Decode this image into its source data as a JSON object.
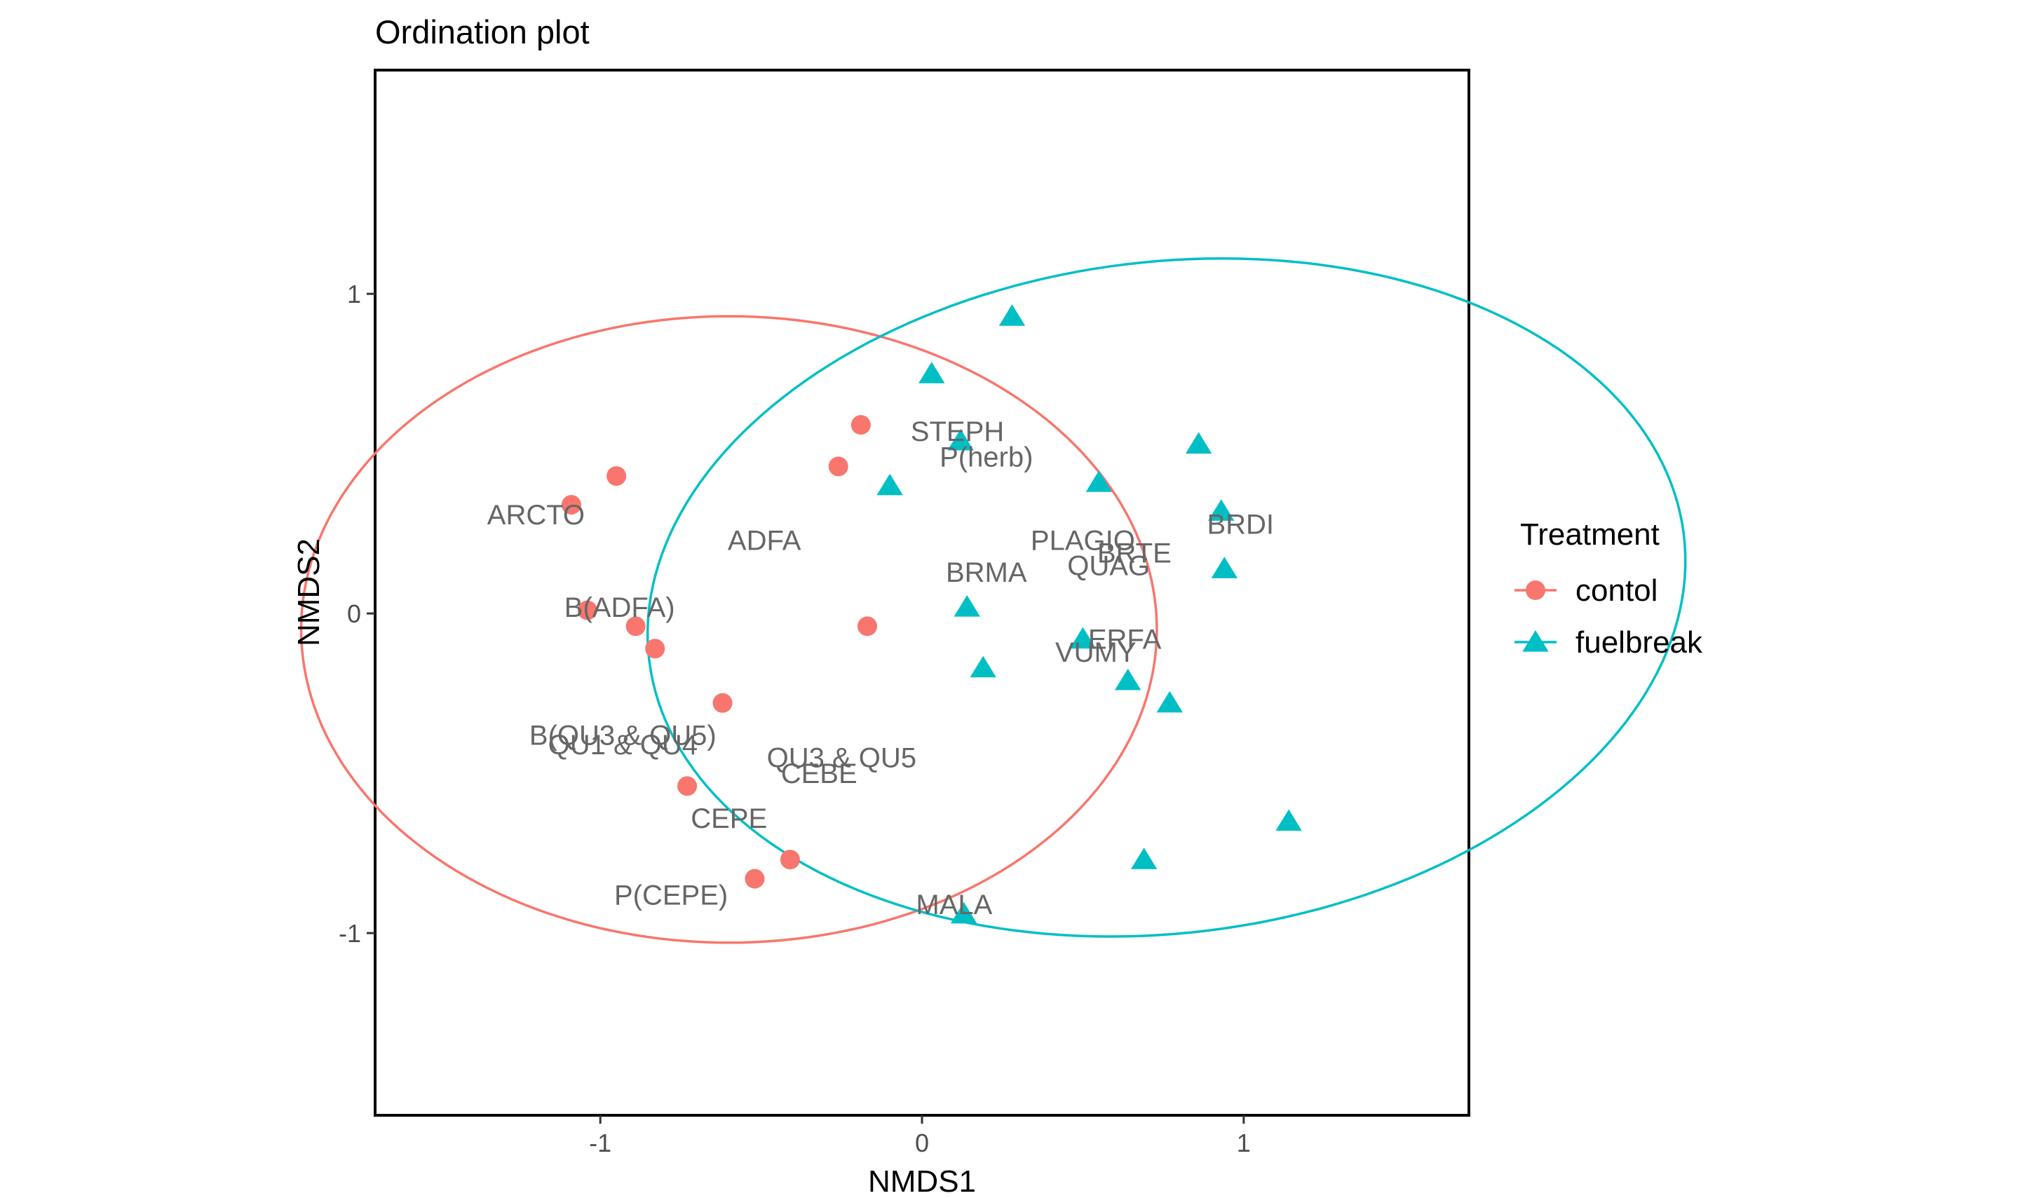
{
  "chart_data": {
    "type": "scatter",
    "title": "Ordination plot",
    "xlabel": "NMDS1",
    "ylabel": "NMDS2",
    "xlim": [
      -1.7,
      1.7
    ],
    "ylim": [
      -1.57,
      1.7
    ],
    "xticks": [
      -1,
      0,
      1
    ],
    "yticks": [
      -1,
      0,
      1
    ],
    "xtick_labels": [
      "-1",
      "0",
      "1"
    ],
    "ytick_labels": [
      "-1",
      "0",
      "1"
    ],
    "grid": false,
    "legend": {
      "title": "Treatment",
      "placement": "right",
      "entries": [
        "contol",
        "fuelbreak"
      ]
    },
    "series": [
      {
        "name": "contol",
        "color": "#F8766D",
        "marker": "circle",
        "points": [
          [
            -1.09,
            0.34
          ],
          [
            -0.95,
            0.43
          ],
          [
            -1.04,
            0.01
          ],
          [
            -0.89,
            -0.04
          ],
          [
            -0.83,
            -0.11
          ],
          [
            -0.62,
            -0.28
          ],
          [
            -0.73,
            -0.54
          ],
          [
            -0.52,
            -0.83
          ],
          [
            -0.41,
            -0.77
          ],
          [
            -0.19,
            0.59
          ],
          [
            -0.26,
            0.46
          ],
          [
            -0.17,
            -0.04
          ]
        ],
        "ellipse": {
          "cx": -0.6,
          "cy": -0.05,
          "rx": 0.98,
          "ry": 1.33,
          "angle_deg": 90
        }
      },
      {
        "name": "fuelbreak",
        "color": "#00BFC4",
        "marker": "triangle",
        "points": [
          [
            0.28,
            0.93
          ],
          [
            0.03,
            0.75
          ],
          [
            0.12,
            0.54
          ],
          [
            -0.1,
            0.4
          ],
          [
            0.55,
            0.41
          ],
          [
            0.86,
            0.53
          ],
          [
            0.93,
            0.32
          ],
          [
            0.94,
            0.14
          ],
          [
            0.14,
            0.02
          ],
          [
            0.19,
            -0.17
          ],
          [
            0.5,
            -0.08
          ],
          [
            0.64,
            -0.21
          ],
          [
            0.77,
            -0.28
          ],
          [
            1.14,
            -0.65
          ],
          [
            0.69,
            -0.77
          ],
          [
            0.13,
            -0.94
          ]
        ],
        "ellipse": {
          "cx": 0.76,
          "cy": 0.05,
          "rx": 1.05,
          "ry": 1.62,
          "angle_deg": 97
        }
      }
    ],
    "labels": [
      {
        "text": "STEPH",
        "x": 0.11,
        "y": 0.57
      },
      {
        "text": "P(herb)",
        "x": 0.2,
        "y": 0.49
      },
      {
        "text": "ARCTO",
        "x": -1.2,
        "y": 0.31
      },
      {
        "text": "ADFA",
        "x": -0.49,
        "y": 0.23
      },
      {
        "text": "PLAGIO",
        "x": 0.5,
        "y": 0.23
      },
      {
        "text": "BRTE",
        "x": 0.66,
        "y": 0.19
      },
      {
        "text": "QUAG",
        "x": 0.58,
        "y": 0.15
      },
      {
        "text": "BRDI",
        "x": 0.99,
        "y": 0.28
      },
      {
        "text": "BRMA",
        "x": 0.2,
        "y": 0.13
      },
      {
        "text": "B(ADFA)",
        "x": -0.94,
        "y": 0.02
      },
      {
        "text": "ERFA",
        "x": 0.63,
        "y": -0.08
      },
      {
        "text": "VUMY",
        "x": 0.54,
        "y": -0.12
      },
      {
        "text": "B(QU3 & QU5)",
        "x": -0.93,
        "y": -0.38
      },
      {
        "text": "QU1 & QU4",
        "x": -0.93,
        "y": -0.41
      },
      {
        "text": "QU3 & QU5",
        "x": -0.25,
        "y": -0.45
      },
      {
        "text": "CEBE",
        "x": -0.32,
        "y": -0.5
      },
      {
        "text": "CEPE",
        "x": -0.6,
        "y": -0.64
      },
      {
        "text": "P(CEPE)",
        "x": -0.78,
        "y": -0.88
      },
      {
        "text": "MALA",
        "x": 0.1,
        "y": -0.91
      }
    ]
  }
}
